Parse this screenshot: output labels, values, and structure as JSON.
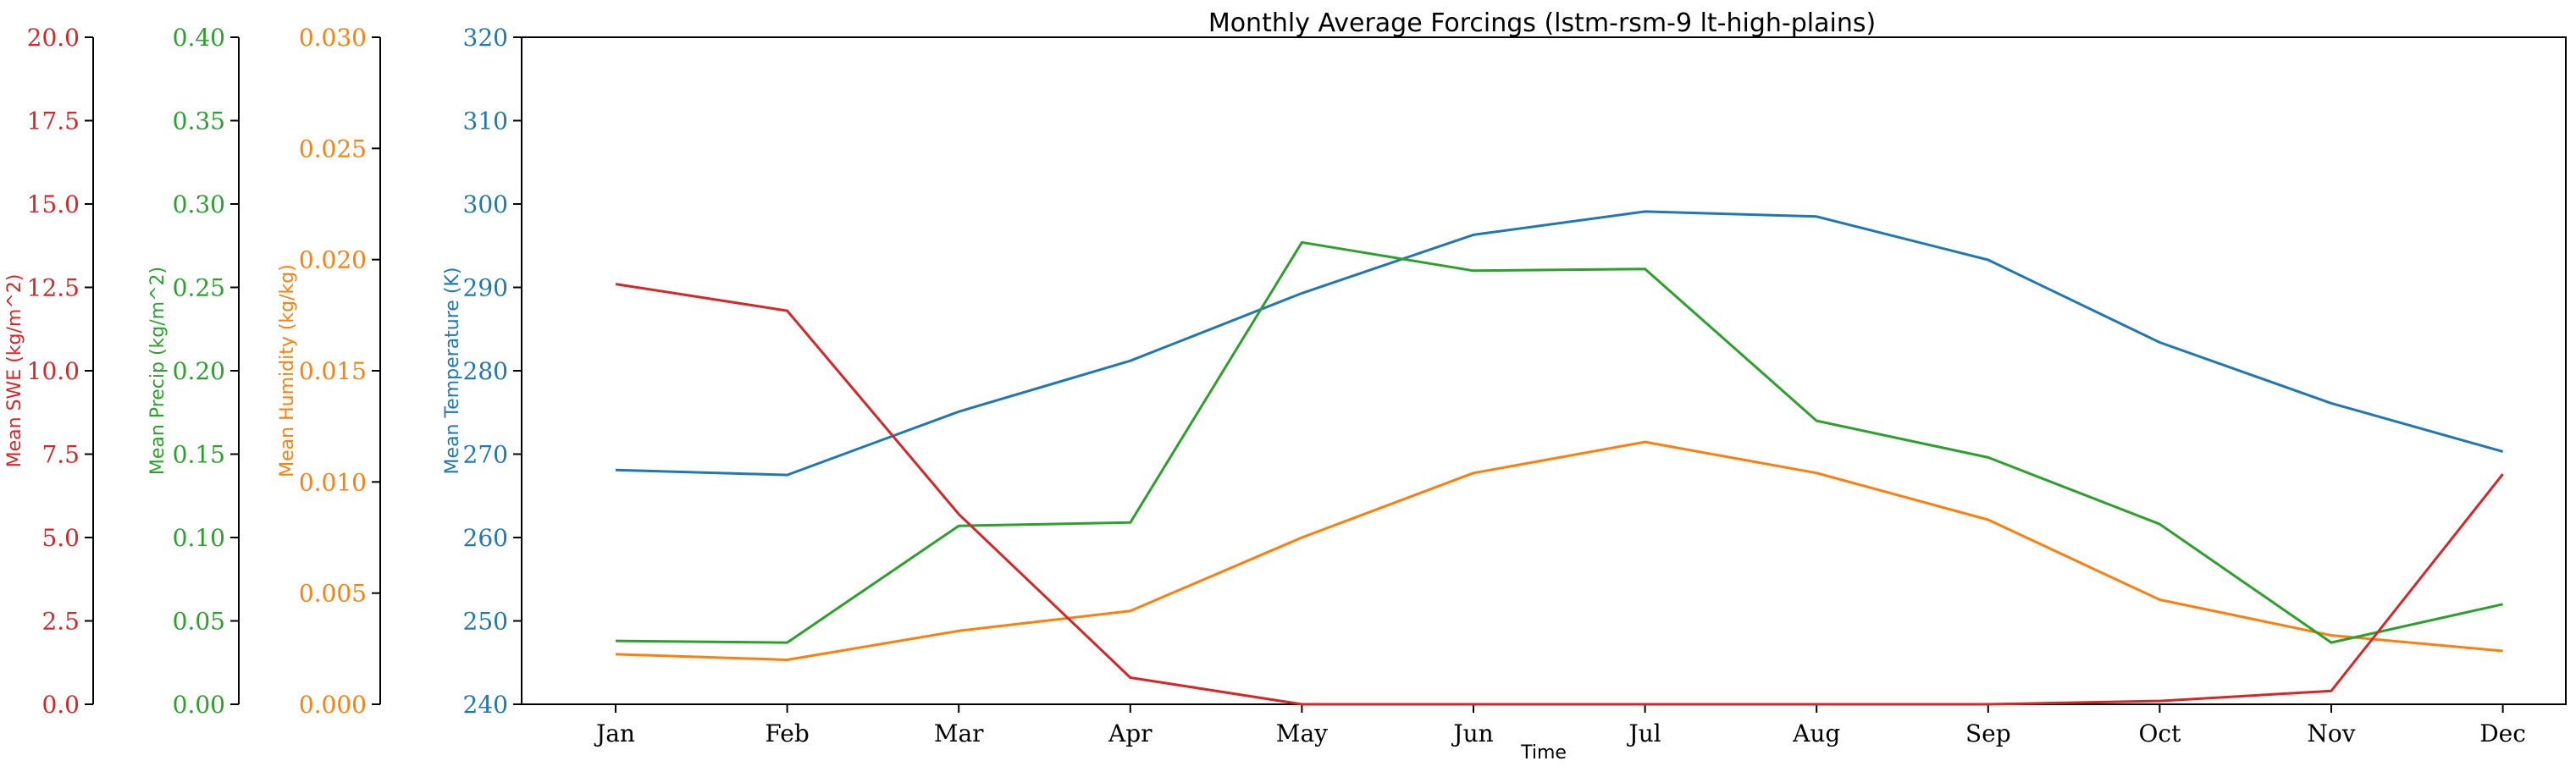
{
  "chart_data": {
    "type": "line",
    "title": "Monthly Average Forcings (lstm-rsm-9 lt-high-plains)",
    "xlabel": "Time",
    "categories": [
      "Jan",
      "Feb",
      "Mar",
      "Apr",
      "May",
      "Jun",
      "Jul",
      "Aug",
      "Sep",
      "Oct",
      "Nov",
      "Dec"
    ],
    "grid": false,
    "axes": [
      {
        "id": "swe",
        "label": "Mean SWE (kg/m^2)",
        "color": "#d62728",
        "ylim": [
          0,
          20
        ],
        "ticks": [
          "0.0",
          "2.5",
          "5.0",
          "7.5",
          "10.0",
          "12.5",
          "15.0",
          "17.5",
          "20.0"
        ]
      },
      {
        "id": "precip",
        "label": "Mean Precip (kg/m^2)",
        "color": "#2ca02c",
        "ylim": [
          0,
          0.4
        ],
        "ticks": [
          "0.00",
          "0.05",
          "0.10",
          "0.15",
          "0.20",
          "0.25",
          "0.30",
          "0.35",
          "0.40"
        ]
      },
      {
        "id": "humidity",
        "label": "Mean Humidity (kg/kg)",
        "color": "#ff7f0e",
        "ylim": [
          0,
          0.03
        ],
        "ticks": [
          "0.000",
          "0.005",
          "0.010",
          "0.015",
          "0.020",
          "0.025",
          "0.030"
        ]
      },
      {
        "id": "temp",
        "label": "Mean Temperature (K)",
        "color": "#1f77b4",
        "ylim": [
          240,
          320
        ],
        "ticks": [
          "240",
          "250",
          "260",
          "270",
          "280",
          "290",
          "300",
          "310",
          "320"
        ]
      }
    ],
    "series": [
      {
        "axis": "temp",
        "color": "#1f77b4",
        "values": [
          268.1,
          267.5,
          275.1,
          281.2,
          289.3,
          296.3,
          299.1,
          298.5,
          293.3,
          283.4,
          276.1,
          270.3
        ]
      },
      {
        "axis": "humidity",
        "color": "#ff7f0e",
        "values": [
          0.00225,
          0.002,
          0.0033,
          0.0042,
          0.0075,
          0.0104,
          0.0118,
          0.0104,
          0.0083,
          0.0047,
          0.0031,
          0.0024
        ]
      },
      {
        "axis": "precip",
        "color": "#2ca02c",
        "values": [
          0.038,
          0.037,
          0.107,
          0.109,
          0.277,
          0.26,
          0.261,
          0.17,
          0.148,
          0.108,
          0.037,
          0.06
        ]
      },
      {
        "axis": "swe",
        "color": "#d62728",
        "values": [
          12.6,
          11.8,
          5.7,
          0.8,
          0.0,
          0.0,
          0.0,
          0.0,
          0.0,
          0.1,
          0.4,
          6.9
        ]
      }
    ]
  }
}
